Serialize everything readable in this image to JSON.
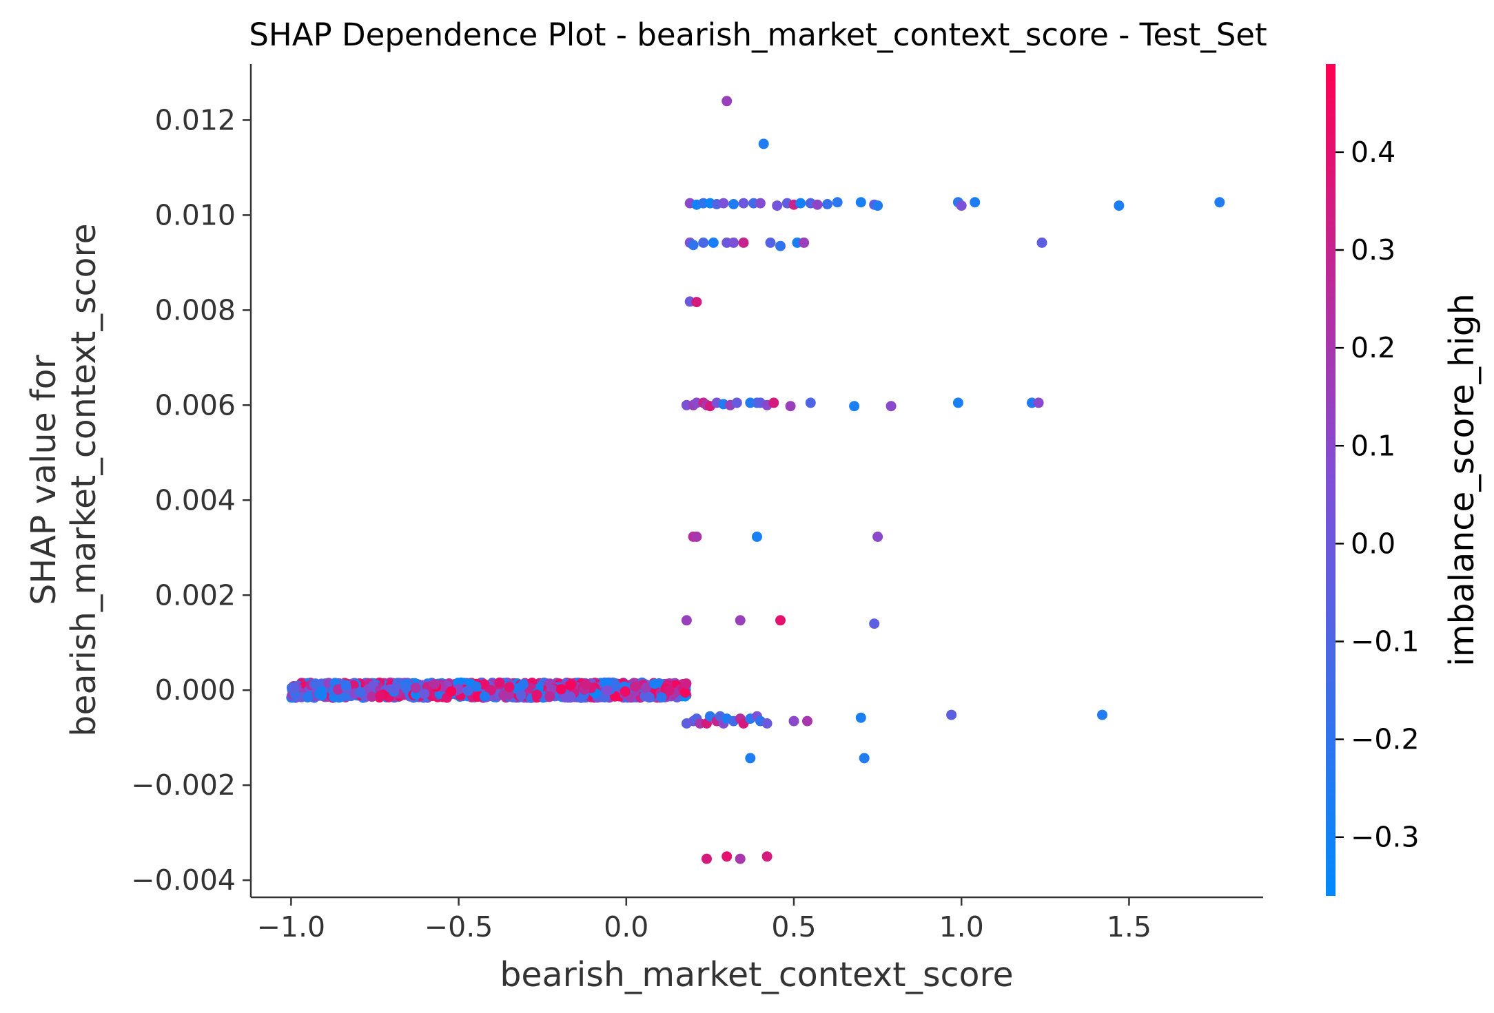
{
  "chart_data": {
    "type": "scatter",
    "title": "SHAP Dependence Plot - bearish_market_context_score - Test_Set",
    "xlabel": "bearish_market_context_score",
    "ylabel_line1": "SHAP value for",
    "ylabel_line2": "bearish_market_context_score",
    "xlim": [
      -1.12,
      1.9
    ],
    "ylim": [
      -0.00436,
      0.01318
    ],
    "xticks": [
      -1.0,
      -0.5,
      0.0,
      0.5,
      1.0,
      1.5
    ],
    "xtick_labels": [
      "−1.0",
      "−0.5",
      "0.0",
      "0.5",
      "1.0",
      "1.5"
    ],
    "yticks": [
      0.012,
      0.01,
      0.008,
      0.006,
      0.004,
      0.002,
      0.0,
      -0.002,
      -0.004
    ],
    "ytick_labels": [
      "0.012",
      "0.010",
      "0.008",
      "0.006",
      "0.004",
      "0.002",
      "0.000",
      "−0.002",
      "−0.004"
    ],
    "grid": false,
    "colorbar": {
      "label": "imbalance_score_high",
      "range": [
        -0.36,
        0.49
      ],
      "ticks": [
        0.4,
        0.3,
        0.2,
        0.1,
        0.0,
        -0.1,
        -0.2,
        -0.3
      ],
      "tick_labels": [
        "0.4",
        "0.3",
        "0.2",
        "0.1",
        "0.0",
        "−0.1",
        "−0.2",
        "−0.3"
      ],
      "color_low": "#008afb",
      "color_mid": "#7f4fd6",
      "color_high": "#ff0052"
    },
    "dense_band": {
      "x_range": [
        -1.0,
        0.18
      ],
      "y_center": 0.0,
      "y_spread": 0.00016,
      "note_color_mix": "mixed"
    },
    "points": [
      {
        "x": 0.3,
        "y": 0.0124,
        "c": 0.15
      },
      {
        "x": 0.41,
        "y": 0.0115,
        "c": -0.25
      },
      {
        "x": 0.19,
        "y": 0.01025,
        "c": 0.1
      },
      {
        "x": 0.21,
        "y": 0.01022,
        "c": -0.3
      },
      {
        "x": 0.23,
        "y": 0.01025,
        "c": -0.2
      },
      {
        "x": 0.25,
        "y": 0.01025,
        "c": -0.33
      },
      {
        "x": 0.27,
        "y": 0.01023,
        "c": -0.1
      },
      {
        "x": 0.29,
        "y": 0.01025,
        "c": 0.05
      },
      {
        "x": 0.32,
        "y": 0.01023,
        "c": -0.25
      },
      {
        "x": 0.35,
        "y": 0.01025,
        "c": 0.0
      },
      {
        "x": 0.38,
        "y": 0.01025,
        "c": -0.15
      },
      {
        "x": 0.4,
        "y": 0.01025,
        "c": 0.08
      },
      {
        "x": 0.45,
        "y": 0.0102,
        "c": 0.02
      },
      {
        "x": 0.48,
        "y": 0.01025,
        "c": -0.05
      },
      {
        "x": 0.5,
        "y": 0.01022,
        "c": 0.3
      },
      {
        "x": 0.52,
        "y": 0.01025,
        "c": -0.3
      },
      {
        "x": 0.55,
        "y": 0.01025,
        "c": -0.1
      },
      {
        "x": 0.57,
        "y": 0.01022,
        "c": 0.12
      },
      {
        "x": 0.6,
        "y": 0.01023,
        "c": -0.18
      },
      {
        "x": 0.63,
        "y": 0.01027,
        "c": -0.22
      },
      {
        "x": 0.7,
        "y": 0.01027,
        "c": -0.28
      },
      {
        "x": 0.74,
        "y": 0.01022,
        "c": -0.05
      },
      {
        "x": 0.75,
        "y": 0.0102,
        "c": -0.25
      },
      {
        "x": 0.99,
        "y": 0.01027,
        "c": -0.22
      },
      {
        "x": 1.0,
        "y": 0.0102,
        "c": 0.05
      },
      {
        "x": 1.04,
        "y": 0.01027,
        "c": -0.26
      },
      {
        "x": 1.47,
        "y": 0.0102,
        "c": -0.27
      },
      {
        "x": 1.77,
        "y": 0.01027,
        "c": -0.25
      },
      {
        "x": 0.19,
        "y": 0.00942,
        "c": 0.05
      },
      {
        "x": 0.2,
        "y": 0.00937,
        "c": -0.2
      },
      {
        "x": 0.23,
        "y": 0.00942,
        "c": -0.12
      },
      {
        "x": 0.26,
        "y": 0.00942,
        "c": -0.28
      },
      {
        "x": 0.3,
        "y": 0.00942,
        "c": 0.0
      },
      {
        "x": 0.32,
        "y": 0.00942,
        "c": 0.05
      },
      {
        "x": 0.35,
        "y": 0.00942,
        "c": 0.3
      },
      {
        "x": 0.43,
        "y": 0.00942,
        "c": -0.08
      },
      {
        "x": 0.46,
        "y": 0.00935,
        "c": -0.2
      },
      {
        "x": 0.51,
        "y": 0.00942,
        "c": -0.28
      },
      {
        "x": 0.53,
        "y": 0.00942,
        "c": 0.15
      },
      {
        "x": 1.24,
        "y": 0.00942,
        "c": -0.05
      },
      {
        "x": 0.19,
        "y": 0.00818,
        "c": 0.0
      },
      {
        "x": 0.21,
        "y": 0.00817,
        "c": 0.35
      },
      {
        "x": 0.18,
        "y": 0.006,
        "c": 0.05
      },
      {
        "x": 0.2,
        "y": 0.006,
        "c": 0.15
      },
      {
        "x": 0.21,
        "y": 0.00605,
        "c": 0.1
      },
      {
        "x": 0.23,
        "y": 0.00605,
        "c": 0.3
      },
      {
        "x": 0.24,
        "y": 0.006,
        "c": 0.2
      },
      {
        "x": 0.25,
        "y": 0.00598,
        "c": 0.35
      },
      {
        "x": 0.27,
        "y": 0.00605,
        "c": 0.05
      },
      {
        "x": 0.29,
        "y": 0.00602,
        "c": -0.25
      },
      {
        "x": 0.31,
        "y": 0.006,
        "c": 0.15
      },
      {
        "x": 0.33,
        "y": 0.00605,
        "c": -0.02
      },
      {
        "x": 0.37,
        "y": 0.00605,
        "c": -0.25
      },
      {
        "x": 0.39,
        "y": 0.00605,
        "c": -0.15
      },
      {
        "x": 0.4,
        "y": 0.00605,
        "c": -0.05
      },
      {
        "x": 0.42,
        "y": 0.006,
        "c": 0.1
      },
      {
        "x": 0.44,
        "y": 0.00605,
        "c": 0.35
      },
      {
        "x": 0.49,
        "y": 0.00598,
        "c": 0.15
      },
      {
        "x": 0.55,
        "y": 0.00605,
        "c": -0.1
      },
      {
        "x": 0.68,
        "y": 0.00598,
        "c": -0.27
      },
      {
        "x": 0.79,
        "y": 0.00598,
        "c": 0.1
      },
      {
        "x": 0.99,
        "y": 0.00605,
        "c": -0.28
      },
      {
        "x": 1.21,
        "y": 0.00605,
        "c": -0.25
      },
      {
        "x": 1.23,
        "y": 0.00605,
        "c": 0.1
      },
      {
        "x": 0.2,
        "y": 0.00323,
        "c": 0.25
      },
      {
        "x": 0.21,
        "y": 0.00323,
        "c": 0.2
      },
      {
        "x": 0.39,
        "y": 0.00323,
        "c": -0.28
      },
      {
        "x": 0.75,
        "y": 0.00323,
        "c": 0.1
      },
      {
        "x": 0.18,
        "y": 0.00147,
        "c": 0.15
      },
      {
        "x": 0.34,
        "y": 0.00147,
        "c": 0.15
      },
      {
        "x": 0.46,
        "y": 0.00147,
        "c": 0.4
      },
      {
        "x": 0.74,
        "y": 0.0014,
        "c": -0.05
      },
      {
        "x": 0.18,
        "y": -0.0007,
        "c": -0.05
      },
      {
        "x": 0.2,
        "y": -0.00065,
        "c": 0.0
      },
      {
        "x": 0.21,
        "y": -0.0006,
        "c": -0.1
      },
      {
        "x": 0.22,
        "y": -0.0007,
        "c": 0.2
      },
      {
        "x": 0.24,
        "y": -0.0007,
        "c": 0.35
      },
      {
        "x": 0.25,
        "y": -0.00055,
        "c": -0.22
      },
      {
        "x": 0.27,
        "y": -0.00065,
        "c": 0.3
      },
      {
        "x": 0.28,
        "y": -0.00055,
        "c": -0.1
      },
      {
        "x": 0.29,
        "y": -0.0007,
        "c": 0.1
      },
      {
        "x": 0.3,
        "y": -0.0006,
        "c": -0.26
      },
      {
        "x": 0.32,
        "y": -0.00065,
        "c": -0.15
      },
      {
        "x": 0.34,
        "y": -0.0006,
        "c": 0.25
      },
      {
        "x": 0.35,
        "y": -0.0007,
        "c": 0.35
      },
      {
        "x": 0.37,
        "y": -0.0006,
        "c": -0.22
      },
      {
        "x": 0.39,
        "y": -0.00055,
        "c": 0.05
      },
      {
        "x": 0.4,
        "y": -0.00065,
        "c": -0.2
      },
      {
        "x": 0.42,
        "y": -0.0007,
        "c": 0.0
      },
      {
        "x": 0.5,
        "y": -0.00065,
        "c": 0.1
      },
      {
        "x": 0.54,
        "y": -0.00065,
        "c": 0.2
      },
      {
        "x": 0.7,
        "y": -0.00058,
        "c": -0.27
      },
      {
        "x": 0.97,
        "y": -0.00052,
        "c": -0.05
      },
      {
        "x": 1.42,
        "y": -0.00052,
        "c": -0.25
      },
      {
        "x": 0.37,
        "y": -0.00143,
        "c": -0.27
      },
      {
        "x": 0.71,
        "y": -0.00143,
        "c": -0.25
      },
      {
        "x": 0.24,
        "y": -0.00355,
        "c": 0.35
      },
      {
        "x": 0.3,
        "y": -0.0035,
        "c": 0.4
      },
      {
        "x": 0.34,
        "y": -0.00355,
        "c": 0.2
      },
      {
        "x": 0.42,
        "y": -0.0035,
        "c": 0.35
      }
    ]
  }
}
